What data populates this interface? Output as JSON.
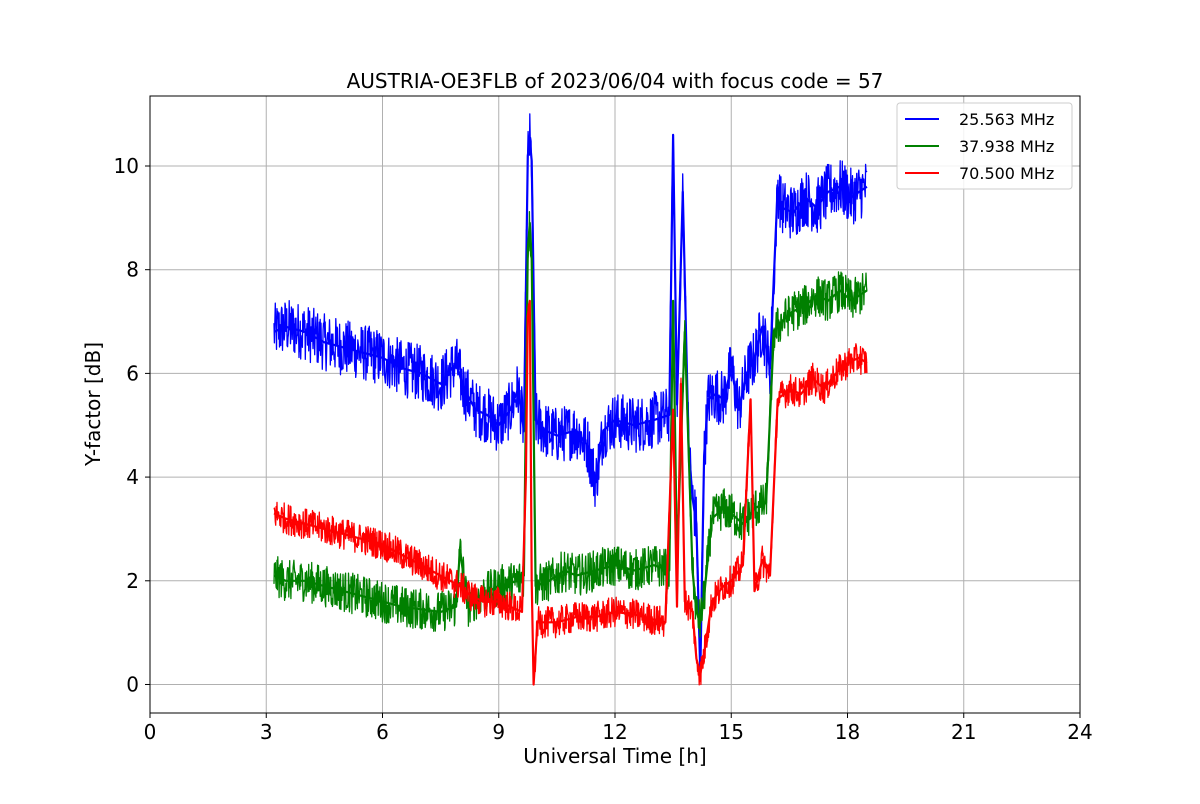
{
  "chart_data": {
    "type": "line",
    "title": "AUSTRIA-OE3FLB of 2023/06/04 with focus code = 57",
    "xlabel": "Universal Time [h]",
    "ylabel": "Y-factor [dB]",
    "xlim": [
      0,
      24
    ],
    "ylim": [
      -0.55,
      11.35
    ],
    "xticks": [
      0,
      3,
      6,
      9,
      12,
      15,
      18,
      21,
      24
    ],
    "yticks": [
      0,
      2,
      4,
      6,
      8,
      10
    ],
    "grid": true,
    "legend_position": "top-right",
    "series": [
      {
        "name": "25.563 MHz",
        "color": "#0000ff",
        "x": [
          3.2,
          3.5,
          4.0,
          4.5,
          5.0,
          5.5,
          6.0,
          6.5,
          7.0,
          7.5,
          7.9,
          8.1,
          8.4,
          8.7,
          9.0,
          9.3,
          9.5,
          9.65,
          9.75,
          9.8,
          9.85,
          9.95,
          10.2,
          10.5,
          11.0,
          11.3,
          11.5,
          11.7,
          12.0,
          12.5,
          13.0,
          13.4,
          13.5,
          13.6,
          13.75,
          13.9,
          14.0,
          14.1,
          14.2,
          14.3,
          14.4,
          14.6,
          14.8,
          15.0,
          15.2,
          15.4,
          15.6,
          15.8,
          16.0,
          16.2,
          16.3,
          16.6,
          16.9,
          17.2,
          17.5,
          17.8,
          18.1,
          18.5
        ],
        "y": [
          6.8,
          6.9,
          6.8,
          6.6,
          6.5,
          6.4,
          6.3,
          6.1,
          6.0,
          5.8,
          6.2,
          5.7,
          5.3,
          5.2,
          5.0,
          5.3,
          5.7,
          4.9,
          10.2,
          10.5,
          10.1,
          5.1,
          4.9,
          4.8,
          4.9,
          4.6,
          3.9,
          4.9,
          5.1,
          5.0,
          5.1,
          5.2,
          10.6,
          5.4,
          9.5,
          4.6,
          3.6,
          3.1,
          0.2,
          4.4,
          5.5,
          5.6,
          5.5,
          6.1,
          5.3,
          6.0,
          6.3,
          6.9,
          6.1,
          9.6,
          9.2,
          9.1,
          9.4,
          9.2,
          9.5,
          9.6,
          9.4,
          9.6
        ],
        "noise": 0.55
      },
      {
        "name": "37.938 MHz",
        "color": "#008000",
        "x": [
          3.2,
          3.5,
          4.0,
          4.5,
          5.0,
          5.5,
          6.0,
          6.5,
          7.0,
          7.5,
          7.9,
          8.0,
          8.2,
          8.5,
          9.0,
          9.5,
          9.65,
          9.75,
          9.8,
          9.85,
          9.95,
          10.3,
          10.7,
          11.0,
          11.5,
          12.0,
          12.5,
          13.0,
          13.4,
          13.5,
          13.6,
          13.8,
          14.0,
          14.1,
          14.2,
          14.3,
          14.5,
          14.8,
          15.0,
          15.3,
          15.6,
          15.9,
          16.1,
          16.3,
          16.6,
          16.9,
          17.2,
          17.5,
          17.8,
          18.1,
          18.5
        ],
        "y": [
          2.1,
          2.0,
          2.0,
          1.9,
          1.8,
          1.7,
          1.6,
          1.5,
          1.45,
          1.4,
          1.5,
          2.6,
          1.5,
          1.7,
          1.9,
          2.0,
          2.1,
          8.4,
          8.9,
          8.2,
          1.9,
          2.0,
          2.2,
          2.1,
          2.2,
          2.3,
          2.2,
          2.3,
          2.2,
          7.4,
          2.4,
          6.8,
          2.2,
          1.4,
          1.2,
          1.7,
          3.2,
          3.4,
          3.3,
          3.1,
          3.4,
          3.5,
          6.8,
          7.0,
          7.2,
          7.3,
          7.5,
          7.4,
          7.6,
          7.4,
          7.6
        ],
        "noise": 0.4
      },
      {
        "name": "70.500 MHz",
        "color": "#ff0000",
        "x": [
          3.2,
          3.5,
          4.0,
          4.5,
          5.0,
          5.5,
          6.0,
          6.5,
          7.0,
          7.5,
          8.0,
          8.3,
          8.6,
          9.0,
          9.3,
          9.6,
          9.7,
          9.75,
          9.8,
          9.85,
          9.9,
          10.0,
          10.5,
          11.0,
          11.5,
          12.0,
          12.5,
          13.0,
          13.3,
          13.5,
          13.6,
          13.7,
          13.8,
          14.0,
          14.1,
          14.2,
          14.3,
          14.5,
          14.8,
          15.0,
          15.3,
          15.5,
          15.6,
          15.8,
          16.0,
          16.2,
          16.5,
          16.8,
          17.1,
          17.4,
          17.7,
          18.0,
          18.3,
          18.5
        ],
        "y": [
          3.3,
          3.2,
          3.1,
          3.0,
          2.9,
          2.8,
          2.7,
          2.5,
          2.3,
          2.1,
          1.9,
          1.7,
          1.6,
          1.6,
          1.5,
          1.4,
          4.0,
          7.1,
          7.4,
          2.0,
          0.0,
          1.2,
          1.2,
          1.3,
          1.3,
          1.4,
          1.35,
          1.25,
          1.2,
          5.3,
          1.5,
          5.8,
          1.6,
          1.4,
          0.5,
          0.2,
          0.6,
          1.6,
          1.9,
          2.0,
          2.3,
          5.5,
          1.8,
          2.4,
          2.1,
          5.5,
          5.7,
          5.6,
          5.9,
          5.7,
          6.0,
          6.2,
          6.3,
          6.2
        ],
        "noise": 0.3
      }
    ]
  }
}
